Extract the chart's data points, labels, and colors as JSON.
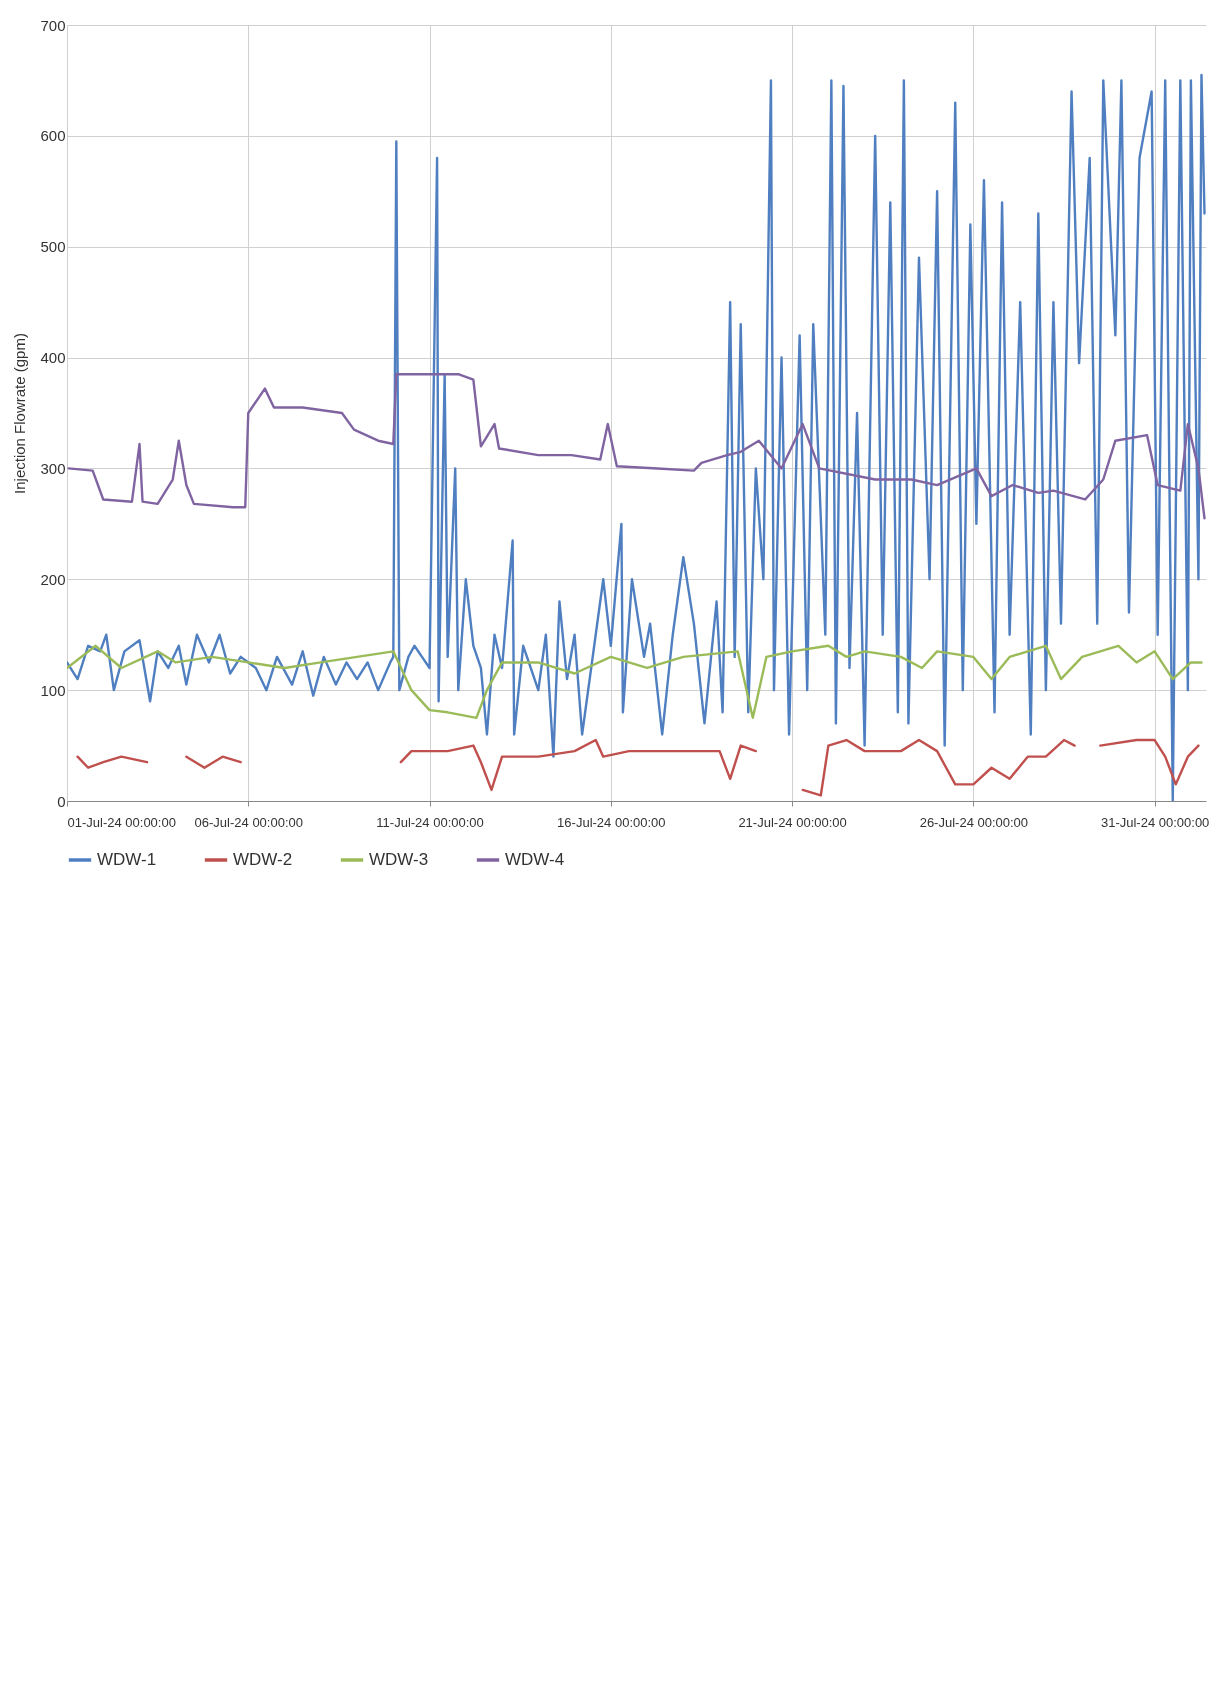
{
  "chart_data": {
    "type": "line",
    "ylabel": "Injection Flowrate (gpm)",
    "xlim": [
      "--07-01",
      "--08-01T10:00"
    ],
    "xticks": [
      {
        "value": "--07-01",
        "label": "01-Jul-24 00:00:00"
      },
      {
        "value": "--07-06",
        "label": "06-Jul-24 00:00:00"
      },
      {
        "value": "--07-11",
        "label": "11-Jul-24 00:00:00"
      },
      {
        "value": "--07-16",
        "label": "16-Jul-24 00:00:00"
      },
      {
        "value": "--07-21",
        "label": "21-Jul-24 00:00:00"
      },
      {
        "value": "--07-26",
        "label": "26-Jul-24 00:00:00"
      },
      {
        "value": "--07-31",
        "label": "31-Jul-24 00:00:00"
      }
    ],
    "ylim": [
      0,
      700
    ],
    "yticks": [
      0,
      100,
      200,
      300,
      400,
      500,
      600,
      700
    ],
    "grid": true,
    "legend": "bottom",
    "series": [
      {
        "name": "WDW-1",
        "color": "#4f7fc0",
        "x": [
          "--07-01T00:00",
          "--07-01T07:00",
          "--07-01T14:00",
          "--07-01T22:00",
          "--07-02T02:00",
          "--07-02T07:00",
          "--07-02T14:00",
          "--07-03T00:00",
          "--07-03T07:00",
          "--07-03T12:00",
          "--07-03T19:00",
          "--07-04T02:00",
          "--07-04T07:00",
          "--07-04T14:00",
          "--07-04T22:00",
          "--07-05T05:00",
          "--07-05T12:00",
          "--07-05T19:00",
          "--07-06T05:00",
          "--07-06T12:00",
          "--07-06T19:00",
          "--07-07T05:00",
          "--07-07T12:00",
          "--07-07T19:00",
          "--07-08T02:00",
          "--07-08T10:00",
          "--07-08T17:00",
          "--07-09T00:00",
          "--07-09T07:00",
          "--07-09T14:00",
          "--07-09T22:00",
          "--07-10T00:00",
          "--07-10T02:00",
          "--07-10T04:00",
          "--07-10T10:00",
          "--07-10T14:00",
          "--07-10T19:00",
          "--07-11T00:00",
          "--07-11T05:00",
          "--07-11T06:00",
          "--07-11T10:00",
          "--07-11T12:00",
          "--07-11T17:00",
          "--07-11T19:00",
          "--07-12T00:00",
          "--07-12T05:00",
          "--07-12T10:00",
          "--07-12T14:00",
          "--07-12T19:00",
          "--07-13T00:00",
          "--07-13T07:00",
          "--07-13T08:00",
          "--07-13T14:00",
          "--07-14T00:00",
          "--07-14T05:00",
          "--07-14T10:00",
          "--07-14T14:00",
          "--07-14T19:00",
          "--07-15T00:00",
          "--07-15T05:00",
          "--07-15T14:00",
          "--07-15T19:00",
          "--07-16T00:00",
          "--07-16T07:00",
          "--07-16T08:00",
          "--07-16T14:00",
          "--07-16T22:00",
          "--07-17T02:00",
          "--07-17T10:00",
          "--07-17T17:00",
          "--07-18T00:00",
          "--07-18T07:00",
          "--07-18T14:00",
          "--07-18T22:00",
          "--07-19T02:00",
          "--07-19T07:00",
          "--07-19T10:00",
          "--07-19T14:00",
          "--07-19T19:00",
          "--07-20T00:00",
          "--07-20T05:00",
          "--07-20T10:00",
          "--07-20T12:00",
          "--07-20T17:00",
          "--07-20T22:00",
          "--07-21T05:00",
          "--07-21T10:00",
          "--07-21T14:00",
          "--07-21T22:00",
          "--07-22T02:00",
          "--07-22T05:00",
          "--07-22T10:00",
          "--07-22T14:00",
          "--07-22T19:00",
          "--07-23T00:00",
          "--07-23T07:00",
          "--07-23T12:00",
          "--07-23T17:00",
          "--07-23T22:00",
          "--07-24T02:00",
          "--07-24T05:00",
          "--07-24T12:00",
          "--07-24T19:00",
          "--07-25T00:00",
          "--07-25T05:00",
          "--07-25T12:00",
          "--07-25T17:00",
          "--07-25T22:00",
          "--07-26T02:00",
          "--07-26T07:00",
          "--07-26T14:00",
          "--07-26T19:00",
          "--07-27T00:00",
          "--07-27T07:00",
          "--07-27T14:00",
          "--07-27T19:00",
          "--07-28T00:00",
          "--07-28T05:00",
          "--07-28T10:00",
          "--07-28T17:00",
          "--07-28T22:00",
          "--07-29T05:00",
          "--07-29T10:00",
          "--07-29T14:00",
          "--07-29T22:00",
          "--07-30T02:00",
          "--07-30T07:00",
          "--07-30T14:00",
          "--07-30T22:00",
          "--07-31T02:00",
          "--07-31T07:00",
          "--07-31T12:00",
          "--07-31T17:00",
          "--07-31T22:00",
          "--08-01T00:00",
          "--08-01T05:00",
          "--08-01T07:00",
          "--08-01T09:00"
        ],
        "values": [
          125,
          110,
          140,
          135,
          150,
          100,
          135,
          145,
          90,
          135,
          120,
          140,
          105,
          150,
          125,
          150,
          115,
          130,
          120,
          100,
          130,
          105,
          135,
          95,
          130,
          105,
          125,
          110,
          125,
          100,
          125,
          130,
          595,
          100,
          130,
          140,
          130,
          120,
          580,
          90,
          385,
          130,
          300,
          100,
          200,
          140,
          120,
          60,
          150,
          120,
          235,
          60,
          140,
          100,
          150,
          40,
          180,
          110,
          150,
          60,
          150,
          200,
          140,
          250,
          80,
          200,
          130,
          160,
          60,
          150,
          220,
          160,
          70,
          180,
          80,
          450,
          130,
          430,
          80,
          300,
          200,
          650,
          100,
          400,
          60,
          420,
          100,
          430,
          150,
          650,
          70,
          645,
          120,
          350,
          50,
          600,
          150,
          540,
          80,
          650,
          70,
          490,
          200,
          550,
          50,
          630,
          100,
          520,
          250,
          560,
          80,
          540,
          150,
          450,
          60,
          530,
          100,
          450,
          160,
          640,
          395,
          580,
          160,
          650,
          420,
          650,
          170,
          580,
          640,
          150,
          650,
          0,
          650,
          100,
          650,
          200,
          655,
          530
        ]
      },
      {
        "name": "WDW-2",
        "color": "#c0504d",
        "x": [
          "--07-01T07:00",
          "--07-01T14:00",
          "--07-02T00:00",
          "--07-02T12:00",
          "--07-03T05:00",
          "--07-03T14:00",
          "--07-04T07:00",
          "--07-04T19:00",
          "--07-05T07:00",
          "--07-05T19:00",
          "--07-07T00:00",
          "--07-10T05:00",
          "--07-10T12:00",
          "--07-11T12:00",
          "--07-12T05:00",
          "--07-12T10:00",
          "--07-12T17:00",
          "--07-13T00:00",
          "--07-14T00:00",
          "--07-15T00:00",
          "--07-15T14:00",
          "--07-15T19:00",
          "--07-16T12:00",
          "--07-17T14:00",
          "--07-18T05:00",
          "--07-19T00:00",
          "--07-19T07:00",
          "--07-19T14:00",
          "--07-20T00:00",
          "--07-20T07:00",
          "--07-21T07:00",
          "--07-21T19:00",
          "--07-22T00:00",
          "--07-22T12:00",
          "--07-23T00:00",
          "--07-24T00:00",
          "--07-24T12:00",
          "--07-25T00:00",
          "--07-25T12:00",
          "--07-26T00:00",
          "--07-26T12:00",
          "--07-27T00:00",
          "--07-27T12:00",
          "--07-28T00:00",
          "--07-28T12:00",
          "--07-28T19:00",
          "--07-29T05:00",
          "--07-29T12:00",
          "--07-30T12:00",
          "--07-31T00:00",
          "--07-31T07:00",
          "--07-31T14:00",
          "--07-31T22:00",
          "--08-01T05:00"
        ],
        "values": [
          40,
          30,
          35,
          40,
          35,
          null,
          40,
          30,
          40,
          35,
          null,
          35,
          45,
          45,
          50,
          35,
          10,
          40,
          40,
          45,
          55,
          40,
          45,
          45,
          45,
          45,
          20,
          50,
          45,
          null,
          10,
          5,
          50,
          55,
          45,
          45,
          55,
          45,
          15,
          15,
          30,
          20,
          40,
          40,
          55,
          50,
          null,
          50,
          55,
          55,
          40,
          15,
          40,
          50
        ]
      },
      {
        "name": "WDW-3",
        "color": "#9bbb59",
        "x": [
          "--07-01T00:00",
          "--07-01T19:00",
          "--07-02T12:00",
          "--07-03T12:00",
          "--07-04T00:00",
          "--07-05T00:00",
          "--07-06T00:00",
          "--07-07T00:00",
          "--07-08T00:00",
          "--07-09T00:00",
          "--07-10T00:00",
          "--07-10T12:00",
          "--07-11T00:00",
          "--07-11T12:00",
          "--07-12T07:00",
          "--07-12T14:00",
          "--07-13T00:00",
          "--07-14T00:00",
          "--07-15T00:00",
          "--07-16T00:00",
          "--07-17T00:00",
          "--07-18T00:00",
          "--07-19T12:00",
          "--07-19T22:00",
          "--07-20T07:00",
          "--07-21T00:00",
          "--07-22T00:00",
          "--07-22T12:00",
          "--07-23T00:00",
          "--07-24T00:00",
          "--07-24T14:00",
          "--07-25T00:00",
          "--07-26T00:00",
          "--07-26T12:00",
          "--07-27T00:00",
          "--07-28T00:00",
          "--07-28T10:00",
          "--07-29T00:00",
          "--07-30T00:00",
          "--07-30T12:00",
          "--07-31T00:00",
          "--07-31T12:00",
          "--08-01T00:00",
          "--08-01T07:00"
        ],
        "values": [
          120,
          140,
          120,
          135,
          125,
          130,
          125,
          120,
          125,
          130,
          135,
          100,
          82,
          80,
          75,
          100,
          125,
          125,
          115,
          130,
          120,
          130,
          135,
          75,
          130,
          135,
          140,
          130,
          135,
          130,
          120,
          135,
          130,
          110,
          130,
          140,
          110,
          130,
          140,
          125,
          135,
          110,
          125,
          125
        ]
      },
      {
        "name": "WDW-4",
        "color": "#8064a2",
        "x": [
          "--07-01T01:00",
          "--07-01T17:00",
          "--07-02T00:00",
          "--07-02T19:00",
          "--07-03T00:00",
          "--07-03T02:00",
          "--07-03T12:00",
          "--07-03T22:00",
          "--07-04T02:00",
          "--07-04T07:00",
          "--07-04T12:00",
          "--07-05T14:00",
          "--07-05T22:00",
          "--07-06T00:00",
          "--07-06T11:00",
          "--07-06T17:00",
          "--07-07T12:00",
          "--07-08T14:00",
          "--07-08T22:00",
          "--07-09T14:00",
          "--07-10T00:00",
          "--07-10T02:00",
          "--07-11T19:00",
          "--07-12T05:00",
          "--07-12T10:00",
          "--07-12T19:00",
          "--07-12T22:00",
          "--07-14T00:00",
          "--07-14T22:00",
          "--07-15T17:00",
          "--07-15T22:00",
          "--07-16T04:00",
          "--07-17T07:00",
          "--07-18T07:00",
          "--07-18T12:00",
          "--07-19T05:00",
          "--07-19T14:00",
          "--07-20T02:00",
          "--07-20T17:00",
          "--07-21T07:00",
          "--07-21T18:00",
          "--07-23T07:00",
          "--07-24T07:00",
          "--07-25T00:00",
          "--07-26T02:00",
          "--07-26T12:00",
          "--07-27T02:00",
          "--07-27T19:00",
          "--07-28T05:00",
          "--07-29T02:00",
          "--07-29T14:00",
          "--07-29T22:00",
          "--07-30T19:00",
          "--07-31T02:00",
          "--07-31T17:00",
          "--07-31T22:00",
          "--08-01T05:00",
          "--08-01T09:00"
        ],
        "values": [
          300,
          298,
          272,
          270,
          322,
          270,
          268,
          290,
          325,
          285,
          268,
          265,
          265,
          350,
          372,
          355,
          355,
          350,
          335,
          325,
          322,
          385,
          385,
          380,
          320,
          340,
          318,
          312,
          312,
          308,
          340,
          302,
          300,
          298,
          305,
          312,
          315,
          325,
          300,
          340,
          300,
          290,
          290,
          285,
          300,
          275,
          285,
          278,
          280,
          272,
          290,
          325,
          330,
          285,
          280,
          340,
          300,
          255
        ]
      }
    ]
  }
}
